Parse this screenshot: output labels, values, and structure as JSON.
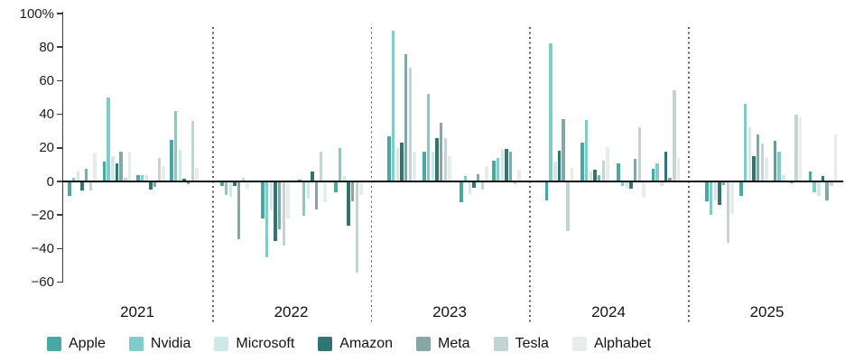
{
  "chart_data": {
    "type": "bar",
    "title": "",
    "unit": "percent",
    "grid": false,
    "legend_position": "bottom",
    "y_axis": {
      "range": [
        -60,
        100
      ],
      "ticks": [
        {
          "label": "100%",
          "value": 100
        },
        {
          "label": "80",
          "value": 80
        },
        {
          "label": "60",
          "value": 60
        },
        {
          "label": "40",
          "value": 40
        },
        {
          "label": "20",
          "value": 20
        },
        {
          "label": "0",
          "value": 0
        },
        {
          "label": "−20",
          "value": -20
        },
        {
          "label": "−40",
          "value": -40
        },
        {
          "label": "−60",
          "value": -60
        }
      ]
    },
    "years": [
      "2021",
      "2022",
      "2023",
      "2024",
      "2025"
    ],
    "quarters_per_year": 4,
    "series": [
      {
        "name": "Apple",
        "color": "#47a9a6",
        "values": [
          [
            -8,
            12,
            3.5,
            25
          ],
          [
            -2,
            -21.5,
            1,
            -6
          ],
          [
            27,
            17.5,
            -12,
            12.5
          ],
          [
            -11,
            23,
            10.5,
            7.5
          ],
          [
            -11.5,
            -8,
            24,
            6
          ]
        ]
      },
      {
        "name": "Nvidia",
        "color": "#7fccc8",
        "values": [
          [
            2,
            50,
            4,
            42
          ],
          [
            -7.5,
            -44.5,
            -20,
            20
          ],
          [
            90,
            52,
            3,
            14
          ],
          [
            82.5,
            36.5,
            -2,
            10.5
          ],
          [
            -19.5,
            46,
            18,
            -6
          ]
        ]
      },
      {
        "name": "Microsoft",
        "color": "#cfe9e7",
        "values": [
          [
            6,
            15,
            4,
            19
          ],
          [
            -8.5,
            -16.5,
            -9.5,
            3
          ],
          [
            20,
            18,
            -7,
            19
          ],
          [
            12,
            6,
            -3.5,
            -2
          ],
          [
            -11,
            32.5,
            4,
            -8
          ]
        ]
      },
      {
        "name": "Amazon",
        "color": "#2e7573",
        "values": [
          [
            -5,
            11,
            -4.5,
            1.5
          ],
          [
            -2,
            -35,
            6,
            -26
          ],
          [
            23,
            26,
            -3,
            19.5
          ],
          [
            18.5,
            7,
            -3.5,
            17.5
          ],
          [
            -13.5,
            15,
            0,
            3
          ]
        ]
      },
      {
        "name": "Meta",
        "color": "#83a8a6",
        "values": [
          [
            7.5,
            18,
            -2.5,
            -1
          ],
          [
            -34,
            -28,
            -16,
            -11.5
          ],
          [
            76,
            35,
            4.5,
            18
          ],
          [
            37,
            4,
            13.5,
            2
          ],
          [
            -1.5,
            28,
            -0.5,
            -11
          ]
        ]
      },
      {
        "name": "Tesla",
        "color": "#c3d5d3",
        "values": [
          [
            -5,
            2,
            14,
            36
          ],
          [
            2,
            -37.5,
            18,
            -54
          ],
          [
            68,
            26,
            -4.5,
            -1
          ],
          [
            -29,
            12.5,
            32,
            54.5
          ],
          [
            -36,
            22.5,
            40,
            -2
          ]
        ]
      },
      {
        "name": "Alphabet",
        "color": "#e7edeb",
        "values": [
          [
            17,
            18,
            9,
            8
          ],
          [
            -4,
            -21.5,
            -12,
            -7.5
          ],
          [
            17.5,
            15,
            9,
            7
          ],
          [
            8,
            20.5,
            -9,
            14
          ],
          [
            -19,
            14.5,
            38,
            28
          ]
        ]
      }
    ]
  }
}
